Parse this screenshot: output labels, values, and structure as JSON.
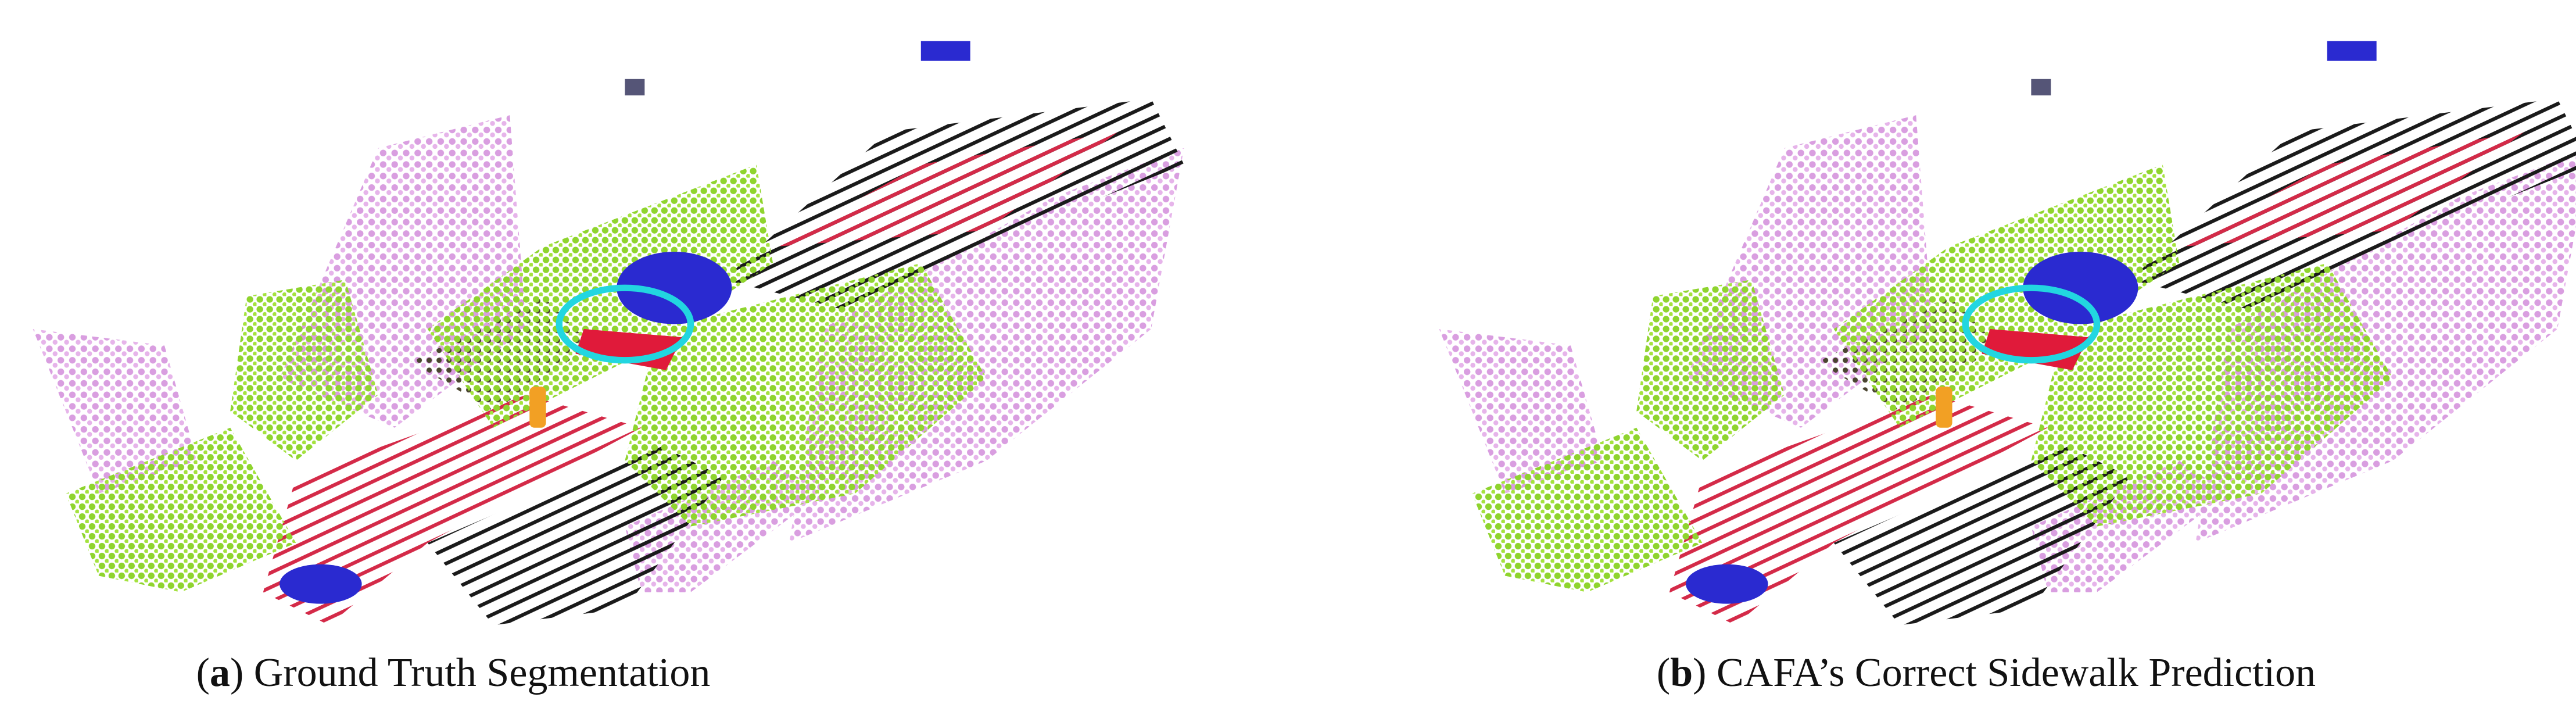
{
  "panels": [
    {
      "open": "(",
      "label": "a",
      "text": ") Ground Truth Segmentation"
    },
    {
      "open": "(",
      "label": "b",
      "text": ") CAFA’s Correct Sidewalk Prediction"
    }
  ]
}
